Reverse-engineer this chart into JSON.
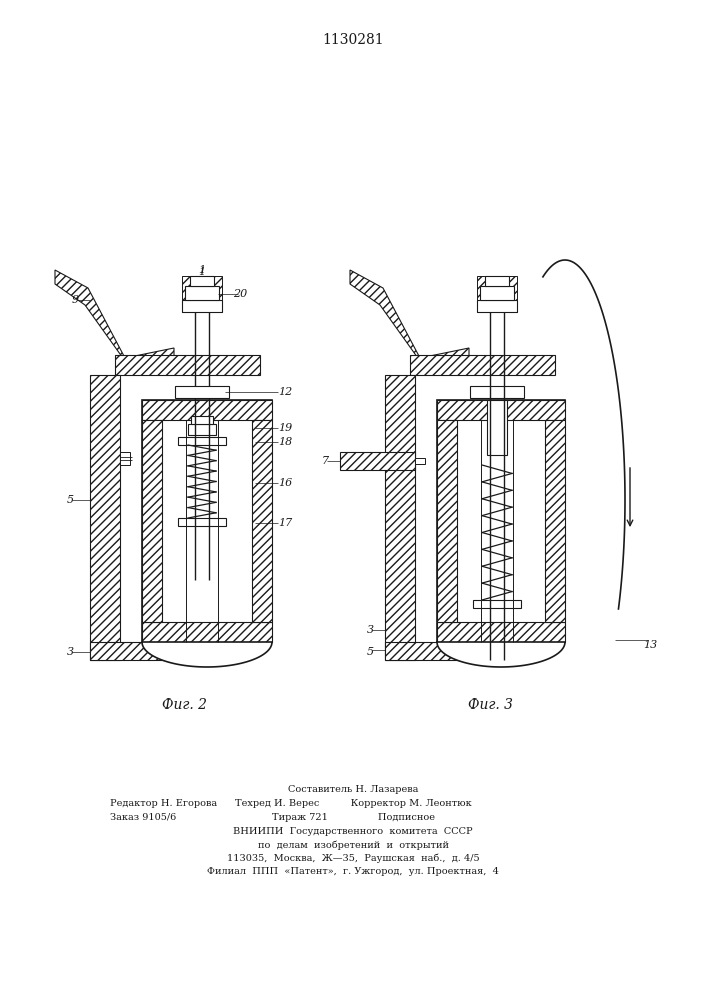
{
  "title": "1130281",
  "background_color": "#ffffff",
  "line_color": "#1a1a1a",
  "fig2_label": "Фиг. 2",
  "fig3_label": "Фиг. 3",
  "footer_center": [
    "Составитель Н. Лазарева",
    "Техред И. Верес          Корректор М. Леонтюк",
    "Тираж 721                Подписное",
    "ВНИИПИ  Государственного  комитета  СССР",
    "по  делам  изобретений  и  открытий",
    "113035,  Москва,  Ж—35,  Раушская  наб.,  д. 4/5",
    "Филиал  ППП  «Патент»,  г. Ужгород,  ул. Проектная,  4"
  ],
  "footer_left": [
    "Редактор Н. Егорова",
    "Заказ 9105/6"
  ],
  "footer_fontsize": 7.0,
  "title_fontsize": 10,
  "fig_label_fontsize": 10
}
